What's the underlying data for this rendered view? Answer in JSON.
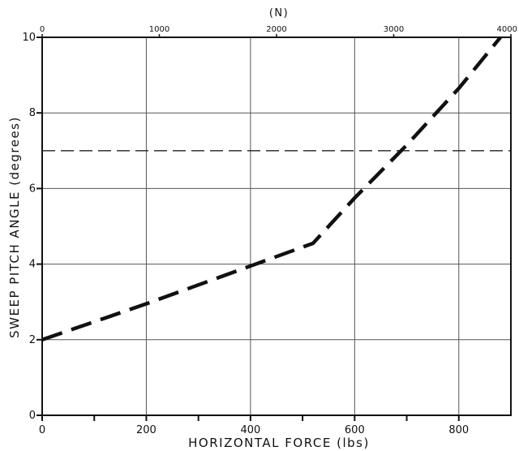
{
  "chart_data": {
    "type": "line",
    "title": "",
    "xlabel": "HORIZONTAL FORCE (lbs)",
    "ylabel": "SWEEP PITCH ANGLE (degrees)",
    "x2label": "(N)",
    "xlim": [
      0,
      900
    ],
    "ylim": [
      0,
      10
    ],
    "x2lim": [
      0,
      4000
    ],
    "xticks": [
      0,
      200,
      400,
      600,
      800
    ],
    "xticks_minor": [
      100,
      300,
      500,
      700
    ],
    "yticks": [
      0,
      2,
      4,
      6,
      8,
      10
    ],
    "x2ticks": [
      0,
      1000,
      2000,
      3000,
      4000
    ],
    "grid": true,
    "series": [
      {
        "name": "",
        "style": "dashed",
        "color": "#111111",
        "x": [
          0,
          200,
          400,
          520,
          600,
          700,
          800,
          880
        ],
        "y": [
          2.0,
          2.95,
          3.95,
          4.55,
          5.75,
          7.15,
          8.65,
          10.0
        ]
      }
    ],
    "reference_lines": [
      {
        "axis": "y",
        "value": 7,
        "style": "dashed",
        "color": "#222222"
      }
    ]
  }
}
